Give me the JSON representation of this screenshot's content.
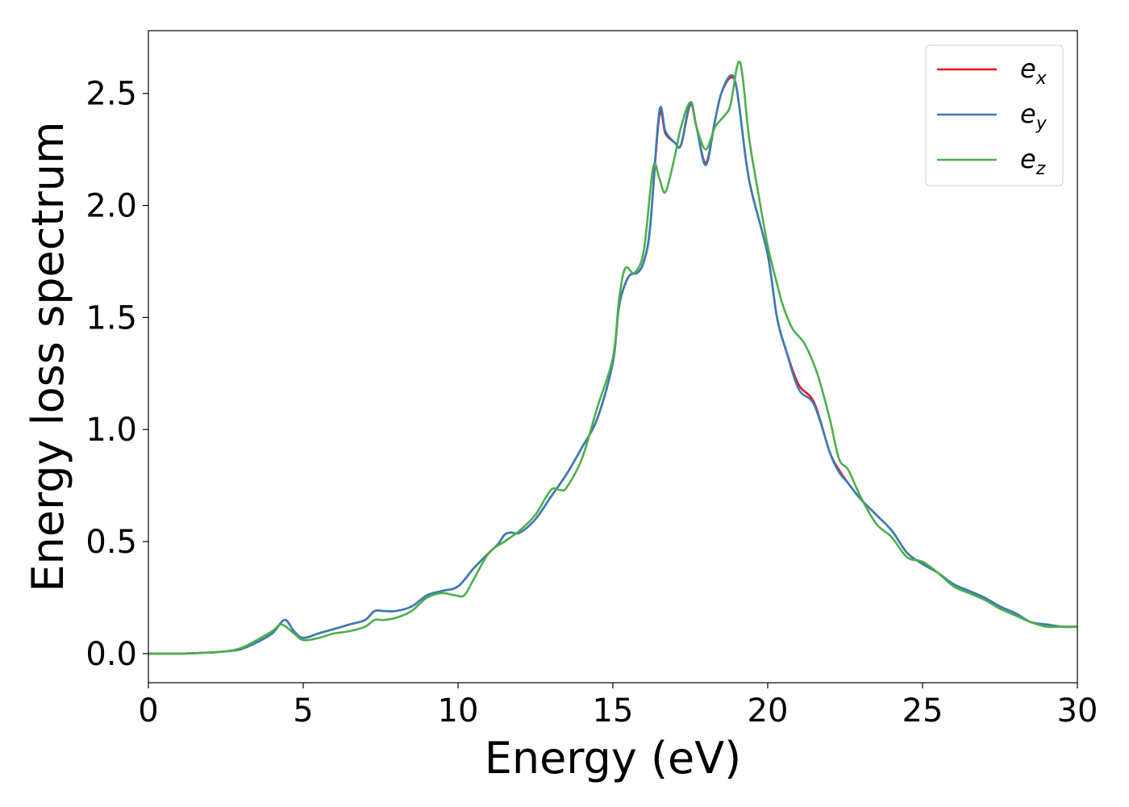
{
  "chart_data": {
    "type": "line",
    "xlabel": "Energy (eV)",
    "ylabel": "Energy loss spectrum",
    "xlim": [
      0,
      30
    ],
    "ylim": [
      -0.13,
      2.78
    ],
    "xticks": [
      0,
      5,
      10,
      15,
      20,
      25,
      30
    ],
    "xtick_labels": [
      "0",
      "5",
      "10",
      "15",
      "20",
      "25",
      "30"
    ],
    "yticks": [
      0.0,
      0.5,
      1.0,
      1.5,
      2.0,
      2.5
    ],
    "ytick_labels": [
      "0.0",
      "0.5",
      "1.0",
      "1.5",
      "2.0",
      "2.5"
    ],
    "grid": false,
    "legend_position": "top-right",
    "series": [
      {
        "name": "e",
        "subscript": "x",
        "color": "#e41a1c",
        "x": [
          0,
          1,
          2,
          2.5,
          3,
          3.5,
          4,
          4.4,
          4.7,
          5,
          5.5,
          6,
          6.5,
          7,
          7.3,
          7.6,
          8,
          8.5,
          9,
          9.5,
          10,
          10.5,
          11,
          11.3,
          11.5,
          11.7,
          12,
          12.5,
          13,
          13.5,
          14,
          14.5,
          15,
          15.2,
          15.5,
          15.8,
          16,
          16.2,
          16.5,
          16.7,
          17,
          17.2,
          17.5,
          17.7,
          18,
          18.3,
          18.5,
          18.8,
          19,
          19.3,
          19.5,
          20,
          20.3,
          20.6,
          21,
          21.5,
          22,
          22.3,
          22.6,
          23,
          23.5,
          24,
          24.5,
          25,
          25.5,
          26,
          26.5,
          27,
          27.5,
          28,
          28.5,
          29,
          29.5,
          30
        ],
        "values": [
          0,
          0,
          0.005,
          0.01,
          0.02,
          0.05,
          0.09,
          0.15,
          0.1,
          0.07,
          0.09,
          0.11,
          0.13,
          0.15,
          0.19,
          0.19,
          0.19,
          0.21,
          0.26,
          0.28,
          0.3,
          0.38,
          0.45,
          0.49,
          0.53,
          0.54,
          0.54,
          0.6,
          0.7,
          0.8,
          0.92,
          1.05,
          1.3,
          1.55,
          1.68,
          1.7,
          1.75,
          1.9,
          2.4,
          2.32,
          2.28,
          2.27,
          2.45,
          2.35,
          2.19,
          2.38,
          2.5,
          2.57,
          2.52,
          2.2,
          2.05,
          1.78,
          1.5,
          1.35,
          1.2,
          1.12,
          0.9,
          0.82,
          0.76,
          0.69,
          0.62,
          0.55,
          0.45,
          0.4,
          0.36,
          0.31,
          0.28,
          0.25,
          0.21,
          0.18,
          0.14,
          0.13,
          0.12,
          0.12
        ]
      },
      {
        "name": "e",
        "subscript": "y",
        "color": "#377eb8",
        "x": [
          0,
          1,
          2,
          2.5,
          3,
          3.5,
          4,
          4.4,
          4.7,
          5,
          5.5,
          6,
          6.5,
          7,
          7.3,
          7.6,
          8,
          8.5,
          9,
          9.5,
          10,
          10.5,
          11,
          11.3,
          11.5,
          11.7,
          12,
          12.5,
          13,
          13.5,
          14,
          14.5,
          15,
          15.2,
          15.5,
          15.8,
          16,
          16.2,
          16.5,
          16.7,
          17,
          17.2,
          17.5,
          17.7,
          18,
          18.3,
          18.5,
          18.8,
          19,
          19.3,
          19.5,
          20,
          20.3,
          20.6,
          21,
          21.5,
          22,
          22.3,
          22.6,
          23,
          23.5,
          24,
          24.5,
          25,
          25.5,
          26,
          26.5,
          27,
          27.5,
          28,
          28.5,
          29,
          29.5,
          30
        ],
        "values": [
          0,
          0,
          0.005,
          0.01,
          0.02,
          0.05,
          0.09,
          0.15,
          0.1,
          0.07,
          0.09,
          0.11,
          0.13,
          0.15,
          0.19,
          0.19,
          0.19,
          0.21,
          0.26,
          0.28,
          0.3,
          0.38,
          0.45,
          0.49,
          0.53,
          0.54,
          0.54,
          0.6,
          0.7,
          0.8,
          0.92,
          1.05,
          1.3,
          1.55,
          1.68,
          1.7,
          1.75,
          1.9,
          2.42,
          2.33,
          2.28,
          2.27,
          2.46,
          2.35,
          2.18,
          2.38,
          2.5,
          2.58,
          2.52,
          2.2,
          2.05,
          1.78,
          1.5,
          1.35,
          1.18,
          1.11,
          0.9,
          0.81,
          0.76,
          0.69,
          0.62,
          0.55,
          0.45,
          0.4,
          0.36,
          0.31,
          0.28,
          0.25,
          0.21,
          0.18,
          0.14,
          0.13,
          0.12,
          0.12
        ]
      },
      {
        "name": "e",
        "subscript": "z",
        "color": "#4daf4a",
        "x": [
          0,
          1,
          2,
          2.5,
          3,
          3.5,
          4,
          4.3,
          4.7,
          5,
          5.5,
          6,
          6.5,
          7,
          7.3,
          7.6,
          8,
          8.5,
          9,
          9.5,
          9.9,
          10.2,
          10.5,
          11,
          11.5,
          12,
          12.5,
          13,
          13.3,
          13.5,
          14,
          14.5,
          15,
          15.2,
          15.4,
          15.7,
          16,
          16.3,
          16.5,
          16.7,
          17,
          17.2,
          17.5,
          17.7,
          18,
          18.3,
          18.6,
          18.8,
          19.1,
          19.4,
          19.7,
          20,
          20.3,
          20.5,
          20.8,
          21.2,
          21.6,
          22,
          22.3,
          22.6,
          23,
          23.5,
          24,
          24.5,
          25,
          25.5,
          26,
          26.5,
          27,
          27.5,
          28,
          28.5,
          29,
          29.5,
          30
        ],
        "values": [
          0,
          0,
          0.005,
          0.01,
          0.025,
          0.06,
          0.1,
          0.13,
          0.09,
          0.06,
          0.07,
          0.09,
          0.1,
          0.12,
          0.15,
          0.15,
          0.16,
          0.19,
          0.25,
          0.27,
          0.26,
          0.26,
          0.33,
          0.45,
          0.5,
          0.55,
          0.62,
          0.73,
          0.73,
          0.74,
          0.87,
          1.1,
          1.32,
          1.58,
          1.72,
          1.7,
          1.8,
          2.17,
          2.12,
          2.06,
          2.22,
          2.35,
          2.46,
          2.35,
          2.25,
          2.35,
          2.4,
          2.45,
          2.64,
          2.3,
          2.05,
          1.82,
          1.65,
          1.55,
          1.45,
          1.38,
          1.25,
          1.05,
          0.87,
          0.82,
          0.7,
          0.58,
          0.52,
          0.43,
          0.41,
          0.36,
          0.3,
          0.27,
          0.24,
          0.2,
          0.17,
          0.14,
          0.12,
          0.12,
          0.12
        ]
      }
    ]
  }
}
